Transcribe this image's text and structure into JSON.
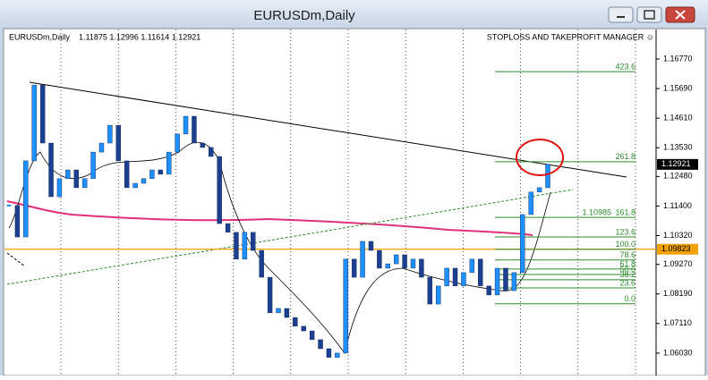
{
  "window": {
    "title": "EURUSDm,Daily"
  },
  "chart_data": {
    "type": "candlestick",
    "symbol": "EURUSDm,Daily",
    "ohlc_info": "1.11875 1.12996 1.11614 1.12921",
    "indicator": "STOPLOSS AND TAKEPROFIT MANAGER ☺",
    "colors": {
      "up": "#1e90ff",
      "down": "#1c3f8f",
      "fib": "#2e8b2e",
      "level": "#f0a000"
    },
    "closes": [
      1.1142,
      1.1027,
      1.1305,
      1.1582,
      1.137,
      1.1174,
      1.124,
      1.1272,
      1.1207,
      1.124,
      1.1337,
      1.137,
      1.1435,
      1.1305,
      1.1207,
      1.1223,
      1.124,
      1.1272,
      1.1256,
      1.1337,
      1.1403,
      1.1468,
      1.137,
      1.1354,
      1.1321,
      1.1076,
      1.1044,
      1.0946,
      1.1044,
      1.0978,
      1.088,
      1.075,
      1.0766,
      1.0733,
      1.0701,
      1.0684,
      1.0652,
      1.0619,
      1.0587,
      1.0603,
      1.0946,
      1.088,
      1.1011,
      1.0978,
      1.0913,
      1.0929,
      1.0962,
      1.0913,
      1.0946,
      1.088,
      1.0782,
      1.0848,
      1.0913,
      1.0848,
      1.0897,
      1.0946,
      1.0848,
      1.0815,
      1.0913,
      1.0831,
      1.0897,
      1.1109,
      1.1191,
      1.1207,
      1.12921
    ],
    "ylim": [
      1.0521,
      1.1788
    ],
    "yticks": [
      {
        "value": 1.1677,
        "label": "1.16770"
      },
      {
        "value": 1.1569,
        "label": "1.15690"
      },
      {
        "value": 1.1461,
        "label": "1.14610"
      },
      {
        "value": 1.1353,
        "label": "1.13530"
      },
      {
        "value": 1.1248,
        "label": "1.12480"
      },
      {
        "value": 1.114,
        "label": "1.11400"
      },
      {
        "value": 1.1032,
        "label": "1.10320"
      },
      {
        "value": 1.0927,
        "label": "1.09270"
      },
      {
        "value": 1.0819,
        "label": "1.08190"
      },
      {
        "value": 1.0711,
        "label": "1.07110"
      },
      {
        "value": 1.0603,
        "label": "1.06030"
      }
    ],
    "current_price": 1.12921,
    "level_price": 1.09823,
    "fib_levels": [
      {
        "label": "423.6",
        "value": 1.1631
      },
      {
        "label": "261.8",
        "value": 1.1302
      },
      {
        "label": "161.8",
        "value": 1.10985
      },
      {
        "label": "123.6",
        "value": 1.1027
      },
      {
        "label": "100.0",
        "value": 1.0982
      },
      {
        "label": "78.6",
        "value": 1.0943
      },
      {
        "label": "61.8",
        "value": 1.091
      },
      {
        "label": "50.0",
        "value": 1.089
      },
      {
        "label": "38.2",
        "value": 1.0871
      },
      {
        "label": "23.6",
        "value": 1.0841
      },
      {
        "label": "0.0",
        "value": 1.0783
      }
    ]
  }
}
